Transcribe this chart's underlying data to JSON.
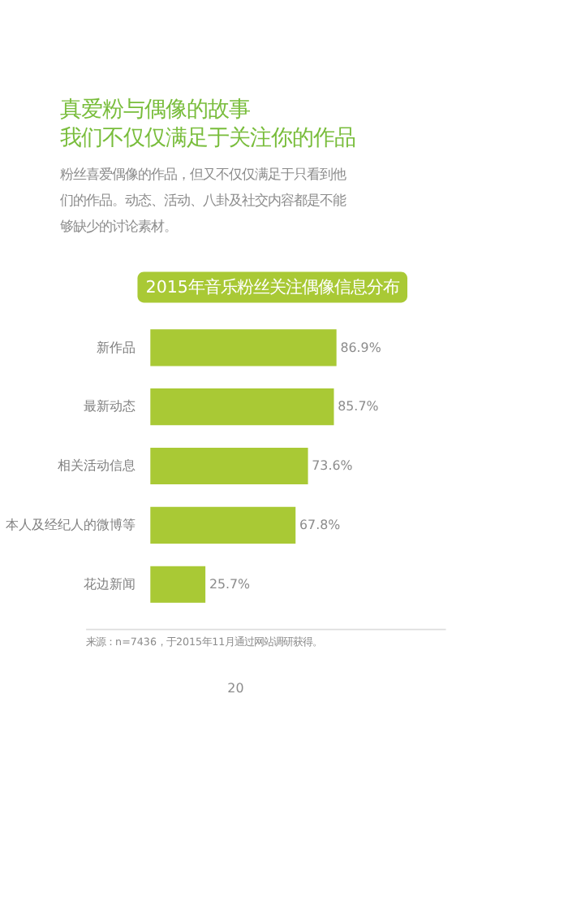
{
  "chart_data": {
    "type": "bar",
    "orientation": "horizontal",
    "title": "2015年音乐粉丝关注偶像信息分布",
    "annotations": [
      "真爱粉与偶像的故事",
      "我们不仅仅满足于关注你的作品",
      "粉丝喜爱偶像的作品，但又不仅仅满足于只看到他们的作品。动态、活动、八卦及社交内容都是不能够缺少的讨论素材。",
      "来源：n=7436，于2015年11月通过网站调研获得。",
      "20"
    ],
    "categories": [
      "新作品",
      "最新动态",
      "相关活动信息",
      "本人及经纪人的微博等",
      "花边新闻"
    ],
    "values": [
      86.9,
      85.7,
      73.6,
      67.8,
      25.7
    ],
    "value_labels": [
      "86.9%",
      "85.7%",
      "73.6%",
      "67.8%",
      "25.7%"
    ],
    "color": "#a9c935",
    "tick_labels": "y"
  }
}
